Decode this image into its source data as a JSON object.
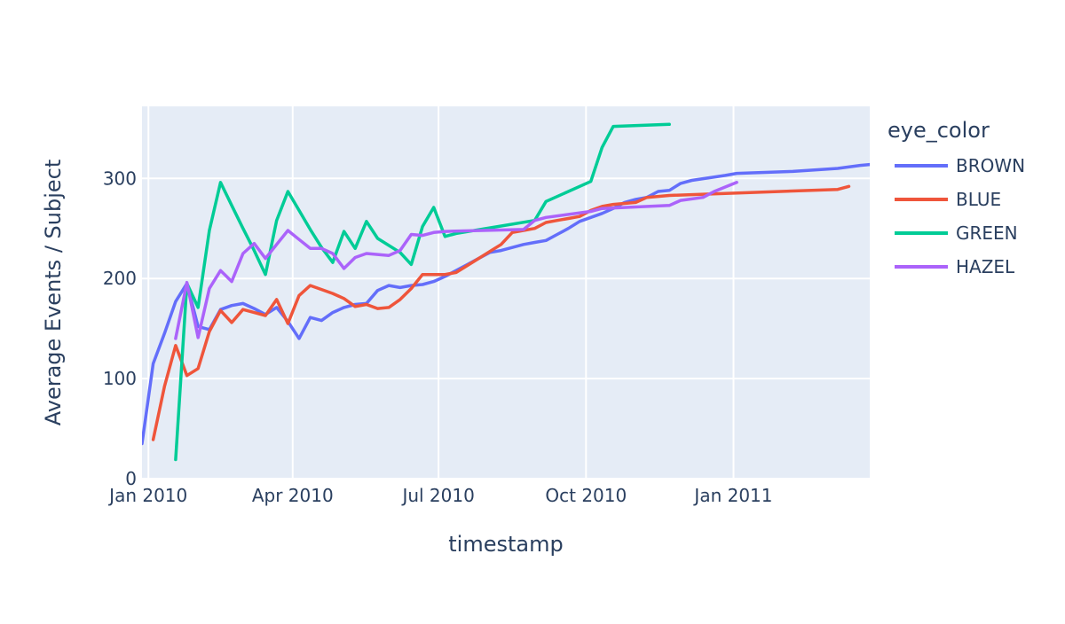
{
  "chart_data": {
    "type": "line",
    "xlabel": "timestamp",
    "ylabel": "Average Events / Subject",
    "x_ticks": [
      "Jan 2010",
      "Apr 2010",
      "Jul 2010",
      "Oct 2010",
      "Jan 2011"
    ],
    "x_tick_dates": [
      "2010-01-01",
      "2010-04-01",
      "2010-07-01",
      "2010-10-01",
      "2011-01-01"
    ],
    "xlim": [
      "2009-12-28",
      "2011-03-27"
    ],
    "y_ticks": [
      0,
      100,
      200,
      300
    ],
    "ylim": [
      0,
      372
    ],
    "grid": true,
    "legend_title": "eye_color",
    "legend_position": "right",
    "series": [
      {
        "name": "BROWN",
        "color": "#636efa",
        "points": [
          [
            "2009-12-28",
            35
          ],
          [
            "2010-01-04",
            115
          ],
          [
            "2010-01-11",
            145
          ],
          [
            "2010-01-18",
            177
          ],
          [
            "2010-01-25",
            195
          ],
          [
            "2010-02-01",
            152
          ],
          [
            "2010-02-08",
            149
          ],
          [
            "2010-02-15",
            169
          ],
          [
            "2010-02-22",
            173
          ],
          [
            "2010-03-01",
            175
          ],
          [
            "2010-03-08",
            170
          ],
          [
            "2010-03-15",
            164
          ],
          [
            "2010-03-22",
            171
          ],
          [
            "2010-03-29",
            157
          ],
          [
            "2010-04-05",
            140
          ],
          [
            "2010-04-12",
            161
          ],
          [
            "2010-04-19",
            158
          ],
          [
            "2010-04-26",
            166
          ],
          [
            "2010-05-03",
            171
          ],
          [
            "2010-05-10",
            174
          ],
          [
            "2010-05-17",
            175
          ],
          [
            "2010-05-24",
            188
          ],
          [
            "2010-05-31",
            193
          ],
          [
            "2010-06-07",
            191
          ],
          [
            "2010-06-14",
            193
          ],
          [
            "2010-06-21",
            194
          ],
          [
            "2010-06-28",
            197
          ],
          [
            "2010-07-05",
            202
          ],
          [
            "2010-07-12",
            208
          ],
          [
            "2010-07-19",
            214
          ],
          [
            "2010-07-26",
            220
          ],
          [
            "2010-08-02",
            226
          ],
          [
            "2010-08-09",
            228
          ],
          [
            "2010-08-16",
            231
          ],
          [
            "2010-08-23",
            234
          ],
          [
            "2010-08-30",
            236
          ],
          [
            "2010-09-06",
            238
          ],
          [
            "2010-09-13",
            244
          ],
          [
            "2010-09-20",
            250
          ],
          [
            "2010-09-27",
            257
          ],
          [
            "2010-10-04",
            261
          ],
          [
            "2010-10-11",
            265
          ],
          [
            "2010-10-18",
            270
          ],
          [
            "2010-10-25",
            276
          ],
          [
            "2010-11-01",
            279
          ],
          [
            "2010-11-08",
            281
          ],
          [
            "2010-11-15",
            287
          ],
          [
            "2010-11-22",
            288
          ],
          [
            "2010-11-29",
            295
          ],
          [
            "2010-12-06",
            298
          ],
          [
            "2010-12-27",
            303
          ],
          [
            "2011-01-03",
            305
          ],
          [
            "2011-02-07",
            307
          ],
          [
            "2011-03-07",
            310
          ],
          [
            "2011-03-21",
            313
          ],
          [
            "2011-03-28",
            314
          ]
        ]
      },
      {
        "name": "BLUE",
        "color": "#ef553b",
        "points": [
          [
            "2010-01-04",
            39
          ],
          [
            "2010-01-11",
            92
          ],
          [
            "2010-01-18",
            133
          ],
          [
            "2010-01-25",
            103
          ],
          [
            "2010-02-01",
            110
          ],
          [
            "2010-02-08",
            147
          ],
          [
            "2010-02-15",
            168
          ],
          [
            "2010-02-22",
            156
          ],
          [
            "2010-03-01",
            169
          ],
          [
            "2010-03-08",
            166
          ],
          [
            "2010-03-15",
            163
          ],
          [
            "2010-03-22",
            179
          ],
          [
            "2010-03-29",
            155
          ],
          [
            "2010-04-05",
            183
          ],
          [
            "2010-04-12",
            193
          ],
          [
            "2010-04-19",
            189
          ],
          [
            "2010-04-26",
            185
          ],
          [
            "2010-05-03",
            180
          ],
          [
            "2010-05-10",
            172
          ],
          [
            "2010-05-17",
            174
          ],
          [
            "2010-05-24",
            170
          ],
          [
            "2010-05-31",
            171
          ],
          [
            "2010-06-07",
            179
          ],
          [
            "2010-06-14",
            190
          ],
          [
            "2010-06-21",
            204
          ],
          [
            "2010-06-28",
            204
          ],
          [
            "2010-07-05",
            204
          ],
          [
            "2010-07-12",
            206
          ],
          [
            "2010-07-19",
            213
          ],
          [
            "2010-07-26",
            220
          ],
          [
            "2010-08-02",
            227
          ],
          [
            "2010-08-09",
            234
          ],
          [
            "2010-08-16",
            246
          ],
          [
            "2010-08-23",
            248
          ],
          [
            "2010-08-30",
            250
          ],
          [
            "2010-09-06",
            256
          ],
          [
            "2010-09-13",
            258
          ],
          [
            "2010-09-20",
            260
          ],
          [
            "2010-09-27",
            262
          ],
          [
            "2010-10-04",
            268
          ],
          [
            "2010-10-11",
            272
          ],
          [
            "2010-10-18",
            274
          ],
          [
            "2010-10-25",
            275
          ],
          [
            "2010-11-01",
            276
          ],
          [
            "2010-11-08",
            281
          ],
          [
            "2010-11-15",
            282
          ],
          [
            "2010-11-22",
            283
          ],
          [
            "2011-03-07",
            289
          ],
          [
            "2011-03-14",
            292
          ]
        ]
      },
      {
        "name": "GREEN",
        "color": "#00cc96",
        "points": [
          [
            "2010-01-18",
            19
          ],
          [
            "2010-01-25",
            195
          ],
          [
            "2010-02-01",
            171
          ],
          [
            "2010-02-08",
            248
          ],
          [
            "2010-02-15",
            296
          ],
          [
            "2010-02-22",
            273
          ],
          [
            "2010-03-01",
            250
          ],
          [
            "2010-03-08",
            228
          ],
          [
            "2010-03-15",
            204
          ],
          [
            "2010-03-22",
            258
          ],
          [
            "2010-03-29",
            287
          ],
          [
            "2010-04-05",
            268
          ],
          [
            "2010-04-12",
            249
          ],
          [
            "2010-04-19",
            231
          ],
          [
            "2010-04-26",
            216
          ],
          [
            "2010-05-03",
            247
          ],
          [
            "2010-05-10",
            230
          ],
          [
            "2010-05-17",
            257
          ],
          [
            "2010-05-24",
            240
          ],
          [
            "2010-05-31",
            233
          ],
          [
            "2010-06-07",
            226
          ],
          [
            "2010-06-14",
            214
          ],
          [
            "2010-06-21",
            252
          ],
          [
            "2010-06-28",
            271
          ],
          [
            "2010-07-05",
            242
          ],
          [
            "2010-07-12",
            245
          ],
          [
            "2010-08-30",
            258
          ],
          [
            "2010-09-06",
            277
          ],
          [
            "2010-10-04",
            297
          ],
          [
            "2010-10-11",
            331
          ],
          [
            "2010-10-18",
            352
          ],
          [
            "2010-11-22",
            354
          ]
        ]
      },
      {
        "name": "HAZEL",
        "color": "#ab63fa",
        "points": [
          [
            "2010-01-18",
            140
          ],
          [
            "2010-01-25",
            196
          ],
          [
            "2010-02-01",
            141
          ],
          [
            "2010-02-08",
            190
          ],
          [
            "2010-02-15",
            208
          ],
          [
            "2010-02-22",
            197
          ],
          [
            "2010-03-01",
            225
          ],
          [
            "2010-03-08",
            235
          ],
          [
            "2010-03-15",
            220
          ],
          [
            "2010-03-22",
            234
          ],
          [
            "2010-03-29",
            248
          ],
          [
            "2010-04-05",
            239
          ],
          [
            "2010-04-12",
            230
          ],
          [
            "2010-04-19",
            230
          ],
          [
            "2010-04-26",
            225
          ],
          [
            "2010-05-03",
            210
          ],
          [
            "2010-05-10",
            221
          ],
          [
            "2010-05-17",
            225
          ],
          [
            "2010-05-24",
            224
          ],
          [
            "2010-05-31",
            223
          ],
          [
            "2010-06-07",
            228
          ],
          [
            "2010-06-14",
            244
          ],
          [
            "2010-06-21",
            243
          ],
          [
            "2010-06-28",
            246
          ],
          [
            "2010-07-05",
            247
          ],
          [
            "2010-08-23",
            249
          ],
          [
            "2010-08-30",
            258
          ],
          [
            "2010-09-06",
            261
          ],
          [
            "2010-10-04",
            267
          ],
          [
            "2010-10-11",
            270
          ],
          [
            "2010-11-22",
            273
          ],
          [
            "2010-11-29",
            278
          ],
          [
            "2010-12-13",
            281
          ],
          [
            "2010-12-20",
            287
          ],
          [
            "2011-01-03",
            296
          ]
        ]
      }
    ]
  }
}
